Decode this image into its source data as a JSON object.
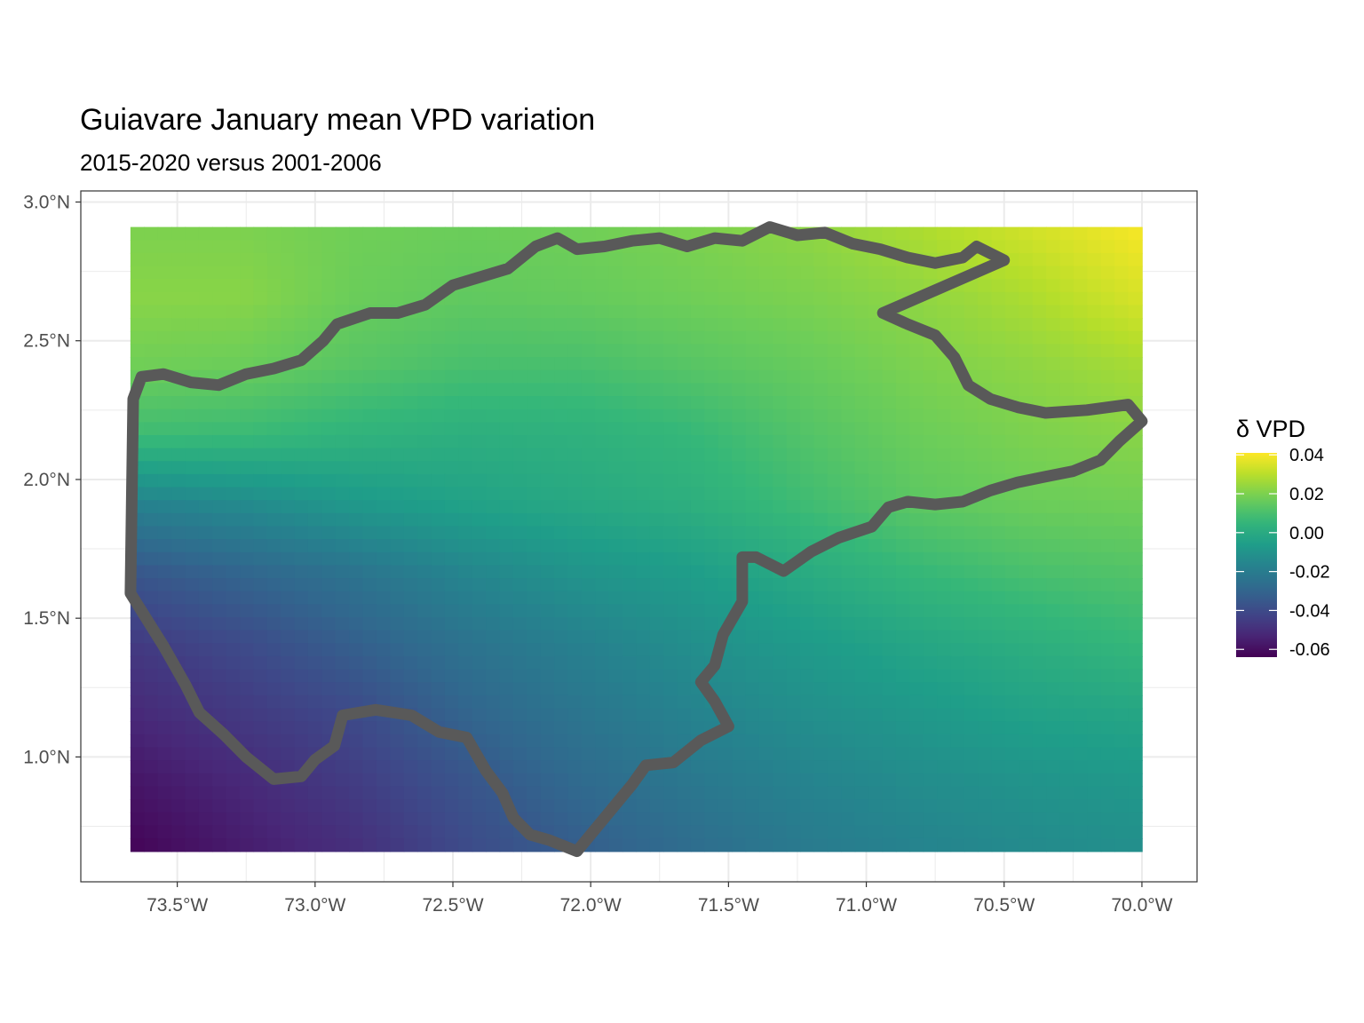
{
  "title": "Guiavare January mean VPD variation",
  "subtitle": "2015-2020 versus 2001-2006",
  "chart_data": {
    "type": "heatmap",
    "map_type": "raster with region boundary outline",
    "title": "Guiavare January mean VPD variation",
    "subtitle": "2015-2020 versus 2001-2006",
    "xlabel": "",
    "ylabel": "",
    "x_ticks": [
      "73.5°W",
      "73.0°W",
      "72.5°W",
      "72.0°W",
      "71.5°W",
      "71.0°W",
      "70.5°W",
      "70.0°W"
    ],
    "x_tick_values": [
      -73.5,
      -73.0,
      -72.5,
      -72.0,
      -71.5,
      -71.0,
      -70.5,
      -70.0
    ],
    "y_ticks": [
      "3.0°N",
      "2.5°N",
      "2.0°N",
      "1.5°N",
      "1.0°N"
    ],
    "y_tick_values": [
      3.0,
      2.5,
      2.0,
      1.5,
      1.0
    ],
    "xlim": [
      -73.85,
      -69.8
    ],
    "ylim": [
      0.55,
      3.04
    ],
    "raster_extent": {
      "lon": [
        -73.67,
        -70.0
      ],
      "lat": [
        0.66,
        2.91
      ]
    },
    "raster_samples": {
      "lon": [
        -73.67,
        -73.25,
        -72.85,
        -72.45,
        -72.05,
        -71.65,
        -71.25,
        -70.85,
        -70.45,
        -70.0
      ],
      "lat": [
        2.91,
        2.66,
        2.41,
        2.16,
        1.91,
        1.66,
        1.41,
        1.16,
        0.91,
        0.66
      ],
      "values": [
        [
          0.02,
          0.02,
          0.018,
          0.017,
          0.018,
          0.02,
          0.023,
          0.028,
          0.034,
          0.04
        ],
        [
          0.022,
          0.022,
          0.017,
          0.015,
          0.016,
          0.018,
          0.02,
          0.023,
          0.028,
          0.035
        ],
        [
          0.018,
          0.017,
          0.013,
          0.01,
          0.01,
          0.013,
          0.016,
          0.02,
          0.023,
          0.027
        ],
        [
          0.008,
          0.007,
          0.004,
          0.002,
          0.003,
          0.006,
          0.012,
          0.017,
          0.02,
          0.022
        ],
        [
          -0.018,
          -0.014,
          -0.008,
          -0.004,
          -0.001,
          0.002,
          0.008,
          0.014,
          0.017,
          0.018
        ],
        [
          -0.036,
          -0.03,
          -0.024,
          -0.016,
          -0.01,
          -0.006,
          0.0,
          0.006,
          0.01,
          0.012
        ],
        [
          -0.046,
          -0.04,
          -0.032,
          -0.024,
          -0.018,
          -0.012,
          -0.007,
          -0.002,
          0.002,
          0.006
        ],
        [
          -0.052,
          -0.046,
          -0.04,
          -0.03,
          -0.023,
          -0.017,
          -0.012,
          -0.008,
          -0.004,
          -0.002
        ],
        [
          -0.058,
          -0.052,
          -0.045,
          -0.036,
          -0.028,
          -0.022,
          -0.017,
          -0.013,
          -0.01,
          -0.008
        ],
        [
          -0.063,
          -0.056,
          -0.05,
          -0.04,
          -0.033,
          -0.027,
          -0.021,
          -0.017,
          -0.014,
          -0.012
        ]
      ]
    },
    "boundary_lonlat": [
      [
        -73.66,
        2.29
      ],
      [
        -73.63,
        2.37
      ],
      [
        -73.55,
        2.38
      ],
      [
        -73.45,
        2.35
      ],
      [
        -73.35,
        2.34
      ],
      [
        -73.25,
        2.38
      ],
      [
        -73.15,
        2.4
      ],
      [
        -73.05,
        2.43
      ],
      [
        -72.97,
        2.5
      ],
      [
        -72.92,
        2.56
      ],
      [
        -72.8,
        2.6
      ],
      [
        -72.7,
        2.6
      ],
      [
        -72.6,
        2.63
      ],
      [
        -72.5,
        2.7
      ],
      [
        -72.4,
        2.73
      ],
      [
        -72.3,
        2.76
      ],
      [
        -72.2,
        2.84
      ],
      [
        -72.12,
        2.87
      ],
      [
        -72.05,
        2.83
      ],
      [
        -71.95,
        2.84
      ],
      [
        -71.85,
        2.86
      ],
      [
        -71.75,
        2.87
      ],
      [
        -71.65,
        2.84
      ],
      [
        -71.55,
        2.87
      ],
      [
        -71.45,
        2.86
      ],
      [
        -71.35,
        2.91
      ],
      [
        -71.25,
        2.88
      ],
      [
        -71.15,
        2.89
      ],
      [
        -71.05,
        2.85
      ],
      [
        -70.95,
        2.83
      ],
      [
        -70.85,
        2.8
      ],
      [
        -70.75,
        2.78
      ],
      [
        -70.65,
        2.8
      ],
      [
        -70.6,
        2.84
      ],
      [
        -70.5,
        2.79
      ],
      [
        -70.94,
        2.6
      ],
      [
        -70.85,
        2.56
      ],
      [
        -70.75,
        2.52
      ],
      [
        -70.68,
        2.44
      ],
      [
        -70.63,
        2.34
      ],
      [
        -70.55,
        2.29
      ],
      [
        -70.45,
        2.26
      ],
      [
        -70.35,
        2.24
      ],
      [
        -70.2,
        2.25
      ],
      [
        -70.05,
        2.27
      ],
      [
        -70.0,
        2.21
      ],
      [
        -70.08,
        2.14
      ],
      [
        -70.15,
        2.07
      ],
      [
        -70.25,
        2.03
      ],
      [
        -70.35,
        2.01
      ],
      [
        -70.45,
        1.99
      ],
      [
        -70.55,
        1.96
      ],
      [
        -70.65,
        1.92
      ],
      [
        -70.75,
        1.91
      ],
      [
        -70.85,
        1.92
      ],
      [
        -70.92,
        1.9
      ],
      [
        -70.98,
        1.83
      ],
      [
        -71.1,
        1.79
      ],
      [
        -71.2,
        1.74
      ],
      [
        -71.3,
        1.67
      ],
      [
        -71.4,
        1.72
      ],
      [
        -71.45,
        1.72
      ],
      [
        -71.45,
        1.56
      ],
      [
        -71.52,
        1.44
      ],
      [
        -71.55,
        1.33
      ],
      [
        -71.6,
        1.27
      ],
      [
        -71.55,
        1.2
      ],
      [
        -71.5,
        1.11
      ],
      [
        -71.6,
        1.06
      ],
      [
        -71.7,
        0.98
      ],
      [
        -71.8,
        0.97
      ],
      [
        -71.85,
        0.9
      ],
      [
        -72.05,
        0.66
      ],
      [
        -72.15,
        0.7
      ],
      [
        -72.22,
        0.72
      ],
      [
        -72.28,
        0.78
      ],
      [
        -72.32,
        0.87
      ],
      [
        -72.38,
        0.95
      ],
      [
        -72.45,
        1.07
      ],
      [
        -72.55,
        1.09
      ],
      [
        -72.65,
        1.15
      ],
      [
        -72.78,
        1.17
      ],
      [
        -72.9,
        1.15
      ],
      [
        -72.93,
        1.04
      ],
      [
        -73.0,
        0.99
      ],
      [
        -73.05,
        0.93
      ],
      [
        -73.15,
        0.92
      ],
      [
        -73.25,
        1.0
      ],
      [
        -73.33,
        1.08
      ],
      [
        -73.42,
        1.16
      ],
      [
        -73.47,
        1.26
      ],
      [
        -73.55,
        1.4
      ],
      [
        -73.67,
        1.59
      ],
      [
        -73.66,
        2.29
      ]
    ]
  },
  "legend": {
    "title": "δ VPD",
    "labels": [
      "0.04",
      "0.02",
      "0.00",
      "-0.02",
      "-0.04",
      "-0.06"
    ],
    "values": [
      0.04,
      0.02,
      0.0,
      -0.02,
      -0.04,
      -0.06
    ],
    "range": [
      -0.064,
      0.041
    ],
    "colormap": "viridis"
  },
  "colors": {
    "boundary": "#595959",
    "panel_border": "#333333",
    "gridline": "#ebebeb"
  }
}
